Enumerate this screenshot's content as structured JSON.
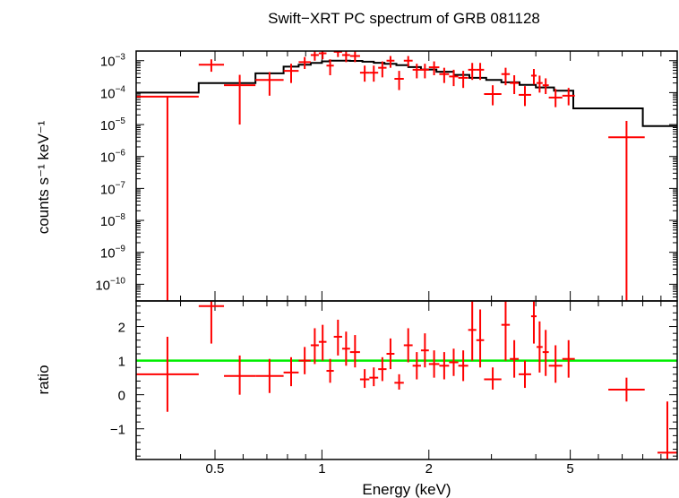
{
  "chart_data": {
    "title": "Swift−XRT PC spectrum of GRB 081128",
    "xlabel": "Energy (keV)",
    "xscale": "log",
    "xlim": [
      0.3,
      10
    ],
    "xticks": [
      {
        "v": 0.5,
        "label": "0.5"
      },
      {
        "v": 1,
        "label": "1"
      },
      {
        "v": 2,
        "label": "2"
      },
      {
        "v": 5,
        "label": "5"
      }
    ],
    "colors": {
      "data": "#ff0000",
      "model": "#000000",
      "unity": "#00ee00"
    },
    "panels": [
      {
        "id": "spectrum",
        "type": "scatter",
        "yscale": "log",
        "ylabel": "counts s⁻¹ keV⁻¹",
        "ylim": [
          3e-11,
          0.002
        ],
        "yticks": [
          {
            "v": 0.001,
            "base": "10",
            "exp": "−3"
          },
          {
            "v": 0.0001,
            "base": "10",
            "exp": "−4"
          },
          {
            "v": 1e-05,
            "base": "10",
            "exp": "−5"
          },
          {
            "v": 1e-06,
            "base": "10",
            "exp": "−6"
          },
          {
            "v": 1e-07,
            "base": "10",
            "exp": "−7"
          },
          {
            "v": 1e-08,
            "base": "10",
            "exp": "−8"
          },
          {
            "v": 1e-09,
            "base": "10",
            "exp": "−9"
          },
          {
            "v": 1e-10,
            "base": "10",
            "exp": "−10"
          }
        ],
        "model_step": [
          {
            "x0": 0.3,
            "x1": 0.45,
            "y": 0.0001
          },
          {
            "x0": 0.45,
            "x1": 0.65,
            "y": 0.0002
          },
          {
            "x0": 0.65,
            "x1": 0.78,
            "y": 0.0004
          },
          {
            "x0": 0.78,
            "x1": 0.86,
            "y": 0.00065
          },
          {
            "x0": 0.86,
            "x1": 0.93,
            "y": 0.00075
          },
          {
            "x0": 0.93,
            "x1": 1.0,
            "y": 0.00085
          },
          {
            "x0": 1.0,
            "x1": 1.05,
            "y": 0.00095
          },
          {
            "x0": 1.05,
            "x1": 1.2,
            "y": 0.001
          },
          {
            "x0": 1.2,
            "x1": 1.3,
            "y": 0.00098
          },
          {
            "x0": 1.3,
            "x1": 1.4,
            "y": 0.00093
          },
          {
            "x0": 1.4,
            "x1": 1.5,
            "y": 0.00086
          },
          {
            "x0": 1.5,
            "x1": 1.62,
            "y": 0.0008
          },
          {
            "x0": 1.62,
            "x1": 1.75,
            "y": 0.00072
          },
          {
            "x0": 1.75,
            "x1": 1.9,
            "y": 0.00063
          },
          {
            "x0": 1.9,
            "x1": 2.1,
            "y": 0.00053
          },
          {
            "x0": 2.1,
            "x1": 2.35,
            "y": 0.00045
          },
          {
            "x0": 2.35,
            "x1": 2.6,
            "y": 0.00036
          },
          {
            "x0": 2.6,
            "x1": 2.9,
            "y": 0.00029
          },
          {
            "x0": 2.9,
            "x1": 3.2,
            "y": 0.00025
          },
          {
            "x0": 3.2,
            "x1": 3.6,
            "y": 0.00021
          },
          {
            "x0": 3.6,
            "x1": 4.0,
            "y": 0.000175
          },
          {
            "x0": 4.0,
            "x1": 4.5,
            "y": 0.000145
          },
          {
            "x0": 4.5,
            "x1": 5.1,
            "y": 0.000115
          },
          {
            "x0": 5.1,
            "x1": 8.0,
            "y": 3.2e-05
          },
          {
            "x0": 8.0,
            "x1": 10.0,
            "y": 9e-06
          }
        ],
        "points": [
          {
            "x0": 0.3,
            "x1": 0.45,
            "y": 7.5e-05,
            "ylo": 3e-11,
            "yhi": 7.5e-05
          },
          {
            "x0": 0.45,
            "x1": 0.53,
            "y": 0.00075,
            "ylo": 0.00045,
            "yhi": 0.0011
          },
          {
            "x0": 0.53,
            "x1": 0.65,
            "y": 0.00017,
            "ylo": 1e-05,
            "yhi": 0.00036
          },
          {
            "x0": 0.65,
            "x1": 0.78,
            "y": 0.00025,
            "ylo": 8e-05,
            "yhi": 0.00044
          },
          {
            "x0": 0.78,
            "x1": 0.86,
            "y": 0.00048,
            "ylo": 0.0002,
            "yhi": 0.0008
          },
          {
            "x0": 0.86,
            "x1": 0.93,
            "y": 0.0009,
            "ylo": 0.00055,
            "yhi": 0.0013
          },
          {
            "x0": 0.93,
            "x1": 0.98,
            "y": 0.0015,
            "ylo": 0.001,
            "yhi": 0.002
          },
          {
            "x0": 0.98,
            "x1": 1.03,
            "y": 0.0017,
            "ylo": 0.0011,
            "yhi": 0.0022
          },
          {
            "x0": 1.03,
            "x1": 1.08,
            "y": 0.0007,
            "ylo": 0.00035,
            "yhi": 0.0011
          },
          {
            "x0": 1.08,
            "x1": 1.14,
            "y": 0.0019,
            "ylo": 0.0013,
            "yhi": 0.0024
          },
          {
            "x0": 1.14,
            "x1": 1.2,
            "y": 0.0015,
            "ylo": 0.0009,
            "yhi": 0.002
          },
          {
            "x0": 1.2,
            "x1": 1.28,
            "y": 0.0014,
            "ylo": 0.0009,
            "yhi": 0.002
          },
          {
            "x0": 1.28,
            "x1": 1.36,
            "y": 0.00042,
            "ylo": 0.00022,
            "yhi": 0.0007
          },
          {
            "x0": 1.36,
            "x1": 1.44,
            "y": 0.00042,
            "ylo": 0.00022,
            "yhi": 0.0007
          },
          {
            "x0": 1.44,
            "x1": 1.52,
            "y": 0.0006,
            "ylo": 0.0003,
            "yhi": 0.00095
          },
          {
            "x0": 1.52,
            "x1": 1.6,
            "y": 0.001,
            "ylo": 0.0006,
            "yhi": 0.0014
          },
          {
            "x0": 1.6,
            "x1": 1.7,
            "y": 0.00027,
            "ylo": 0.00012,
            "yhi": 0.00048
          },
          {
            "x0": 1.7,
            "x1": 1.8,
            "y": 0.001,
            "ylo": 0.00065,
            "yhi": 0.0014
          },
          {
            "x0": 1.8,
            "x1": 1.9,
            "y": 0.00052,
            "ylo": 0.00028,
            "yhi": 0.0008
          },
          {
            "x0": 1.9,
            "x1": 2.0,
            "y": 0.00052,
            "ylo": 0.00028,
            "yhi": 0.0008
          },
          {
            "x0": 2.0,
            "x1": 2.14,
            "y": 0.00062,
            "ylo": 0.00035,
            "yhi": 0.00095
          },
          {
            "x0": 2.14,
            "x1": 2.28,
            "y": 0.00038,
            "ylo": 0.0002,
            "yhi": 0.0006
          },
          {
            "x0": 2.28,
            "x1": 2.42,
            "y": 0.00032,
            "ylo": 0.00016,
            "yhi": 0.00052
          },
          {
            "x0": 2.42,
            "x1": 2.58,
            "y": 0.00029,
            "ylo": 0.00014,
            "yhi": 0.00048
          },
          {
            "x0": 2.58,
            "x1": 2.72,
            "y": 0.00052,
            "ylo": 0.00025,
            "yhi": 0.00085
          },
          {
            "x0": 2.72,
            "x1": 2.86,
            "y": 0.00052,
            "ylo": 0.00025,
            "yhi": 0.00085
          },
          {
            "x0": 2.86,
            "x1": 3.2,
            "y": 9e-05,
            "ylo": 4e-05,
            "yhi": 0.00017
          },
          {
            "x0": 3.2,
            "x1": 3.38,
            "y": 0.00038,
            "ylo": 0.00017,
            "yhi": 0.0006
          },
          {
            "x0": 3.38,
            "x1": 3.58,
            "y": 0.0002,
            "ylo": 9e-05,
            "yhi": 0.00035
          },
          {
            "x0": 3.58,
            "x1": 3.88,
            "y": 8.5e-05,
            "ylo": 3.8e-05,
            "yhi": 0.00016
          },
          {
            "x0": 3.88,
            "x1": 4.02,
            "y": 0.00034,
            "ylo": 0.00018,
            "yhi": 0.00055
          },
          {
            "x0": 4.02,
            "x1": 4.18,
            "y": 0.0002,
            "ylo": 0.0001,
            "yhi": 0.00034
          },
          {
            "x0": 4.18,
            "x1": 4.35,
            "y": 0.00017,
            "ylo": 9e-05,
            "yhi": 0.00028
          },
          {
            "x0": 4.35,
            "x1": 4.75,
            "y": 7e-05,
            "ylo": 3.5e-05,
            "yhi": 0.00013
          },
          {
            "x0": 4.75,
            "x1": 5.15,
            "y": 8e-05,
            "ylo": 4e-05,
            "yhi": 0.00014
          },
          {
            "x0": 6.4,
            "x1": 8.1,
            "y": 4e-06,
            "ylo": 3e-11,
            "yhi": 1.3e-05
          }
        ]
      },
      {
        "id": "ratio",
        "type": "scatter",
        "ylabel": "ratio",
        "ylim": [
          -1.9,
          2.75
        ],
        "yticks": [
          {
            "v": 2,
            "label": "2"
          },
          {
            "v": 1,
            "label": "1"
          },
          {
            "v": 0,
            "label": "0"
          },
          {
            "v": -1,
            "label": "−1"
          }
        ],
        "unity_line": 1,
        "points": [
          {
            "x0": 0.3,
            "x1": 0.45,
            "y": 0.6,
            "ylo": -0.5,
            "yhi": 1.7
          },
          {
            "x0": 0.45,
            "x1": 0.53,
            "y": 2.6,
            "ylo": 1.5,
            "yhi": 2.75
          },
          {
            "x0": 0.53,
            "x1": 0.65,
            "y": 0.55,
            "ylo": 0.0,
            "yhi": 1.15
          },
          {
            "x0": 0.65,
            "x1": 0.78,
            "y": 0.55,
            "ylo": 0.05,
            "yhi": 1.05
          },
          {
            "x0": 0.78,
            "x1": 0.86,
            "y": 0.65,
            "ylo": 0.25,
            "yhi": 1.1
          },
          {
            "x0": 0.86,
            "x1": 0.93,
            "y": 1.0,
            "ylo": 0.6,
            "yhi": 1.4
          },
          {
            "x0": 0.93,
            "x1": 0.98,
            "y": 1.45,
            "ylo": 0.9,
            "yhi": 1.95
          },
          {
            "x0": 0.98,
            "x1": 1.03,
            "y": 1.55,
            "ylo": 1.0,
            "yhi": 2.05
          },
          {
            "x0": 1.03,
            "x1": 1.08,
            "y": 0.7,
            "ylo": 0.35,
            "yhi": 1.05
          },
          {
            "x0": 1.08,
            "x1": 1.14,
            "y": 1.7,
            "ylo": 1.15,
            "yhi": 2.2
          },
          {
            "x0": 1.14,
            "x1": 1.2,
            "y": 1.35,
            "ylo": 0.85,
            "yhi": 1.85
          },
          {
            "x0": 1.2,
            "x1": 1.28,
            "y": 1.25,
            "ylo": 0.8,
            "yhi": 1.75
          },
          {
            "x0": 1.28,
            "x1": 1.36,
            "y": 0.45,
            "ylo": 0.2,
            "yhi": 0.75
          },
          {
            "x0": 1.36,
            "x1": 1.44,
            "y": 0.5,
            "ylo": 0.25,
            "yhi": 0.8
          },
          {
            "x0": 1.44,
            "x1": 1.52,
            "y": 0.75,
            "ylo": 0.4,
            "yhi": 1.1
          },
          {
            "x0": 1.52,
            "x1": 1.6,
            "y": 1.2,
            "ylo": 0.75,
            "yhi": 1.65
          },
          {
            "x0": 1.6,
            "x1": 1.7,
            "y": 0.35,
            "ylo": 0.15,
            "yhi": 0.6
          },
          {
            "x0": 1.7,
            "x1": 1.8,
            "y": 1.45,
            "ylo": 0.95,
            "yhi": 1.95
          },
          {
            "x0": 1.8,
            "x1": 1.9,
            "y": 0.85,
            "ylo": 0.45,
            "yhi": 1.25
          },
          {
            "x0": 1.9,
            "x1": 2.0,
            "y": 1.3,
            "ylo": 0.8,
            "yhi": 1.8
          },
          {
            "x0": 2.0,
            "x1": 2.14,
            "y": 0.9,
            "ylo": 0.5,
            "yhi": 1.3
          },
          {
            "x0": 2.14,
            "x1": 2.28,
            "y": 0.85,
            "ylo": 0.45,
            "yhi": 1.25
          },
          {
            "x0": 2.28,
            "x1": 2.42,
            "y": 0.95,
            "ylo": 0.55,
            "yhi": 1.35
          },
          {
            "x0": 2.42,
            "x1": 2.58,
            "y": 0.85,
            "ylo": 0.4,
            "yhi": 1.3
          },
          {
            "x0": 2.58,
            "x1": 2.72,
            "y": 1.9,
            "ylo": 1.0,
            "yhi": 2.75
          },
          {
            "x0": 2.72,
            "x1": 2.86,
            "y": 1.6,
            "ylo": 0.8,
            "yhi": 2.5
          },
          {
            "x0": 2.86,
            "x1": 3.2,
            "y": 0.45,
            "ylo": 0.15,
            "yhi": 0.8
          },
          {
            "x0": 3.2,
            "x1": 3.38,
            "y": 2.05,
            "ylo": 1.0,
            "yhi": 2.75
          },
          {
            "x0": 3.38,
            "x1": 3.58,
            "y": 1.05,
            "ylo": 0.5,
            "yhi": 1.6
          },
          {
            "x0": 3.58,
            "x1": 3.88,
            "y": 0.6,
            "ylo": 0.2,
            "yhi": 1.0
          },
          {
            "x0": 3.88,
            "x1": 4.02,
            "y": 2.3,
            "ylo": 1.5,
            "yhi": 2.75
          },
          {
            "x0": 4.02,
            "x1": 4.18,
            "y": 1.4,
            "ylo": 0.65,
            "yhi": 2.15
          },
          {
            "x0": 4.18,
            "x1": 4.35,
            "y": 1.25,
            "ylo": 0.55,
            "yhi": 1.9
          },
          {
            "x0": 4.35,
            "x1": 4.75,
            "y": 0.85,
            "ylo": 0.35,
            "yhi": 1.45
          },
          {
            "x0": 4.75,
            "x1": 5.15,
            "y": 1.05,
            "ylo": 0.5,
            "yhi": 1.6
          },
          {
            "x0": 6.4,
            "x1": 8.1,
            "y": 0.15,
            "ylo": -0.2,
            "yhi": 0.5
          },
          {
            "x0": 8.8,
            "x1": 10.0,
            "y": -1.7,
            "ylo": -1.9,
            "yhi": -0.2
          }
        ]
      }
    ]
  }
}
